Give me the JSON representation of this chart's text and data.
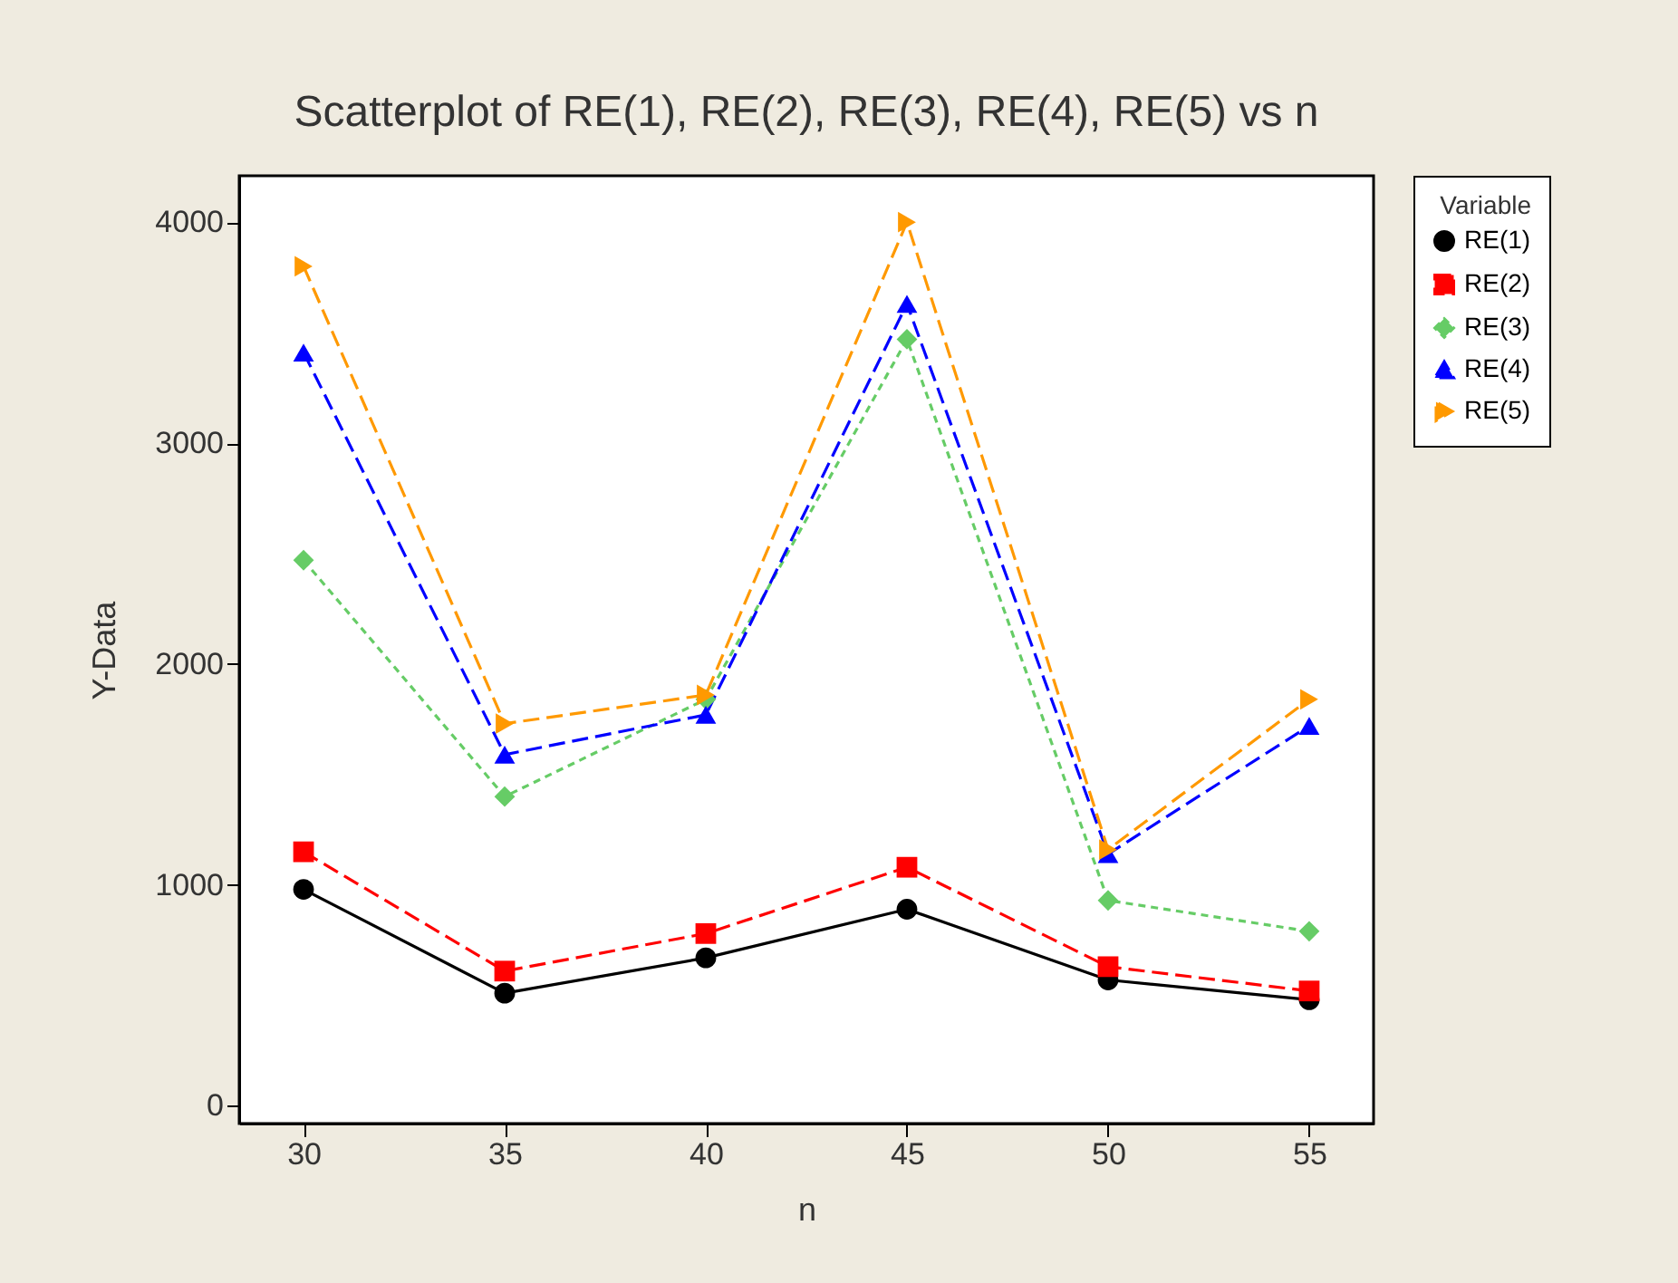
{
  "chart_data": {
    "type": "line",
    "title": "Scatterplot of RE(1), RE(2), RE(3), RE(4), RE(5) vs n",
    "xlabel": "n",
    "ylabel": "Y-Data",
    "legend_title": "Variable",
    "x": [
      30,
      35,
      40,
      45,
      50,
      55
    ],
    "series": [
      {
        "name": "RE(1)",
        "color": "#000000",
        "marker": "circle",
        "line_style": "solid",
        "values": [
          980,
          510,
          670,
          890,
          570,
          480
        ]
      },
      {
        "name": "RE(2)",
        "color": "#ff0000",
        "marker": "square",
        "line_style": "dashed",
        "values": [
          1150,
          610,
          780,
          1080,
          630,
          520
        ]
      },
      {
        "name": "RE(3)",
        "color": "#66cc66",
        "marker": "diamond",
        "line_style": "dotted",
        "values": [
          2470,
          1400,
          1840,
          3470,
          930,
          790
        ]
      },
      {
        "name": "RE(4)",
        "color": "#0000ff",
        "marker": "triangle",
        "line_style": "dashed",
        "values": [
          3410,
          1590,
          1770,
          3630,
          1140,
          1720
        ]
      },
      {
        "name": "RE(5)",
        "color": "#ff9900",
        "marker": "triangle-right",
        "line_style": "dashed",
        "values": [
          3800,
          1730,
          1860,
          4000,
          1160,
          1840
        ]
      }
    ],
    "xlim": [
      28.4,
      56.6
    ],
    "ylim": [
      -80,
      4210
    ],
    "xticks": [
      30,
      35,
      40,
      45,
      50,
      55
    ],
    "yticks": [
      0,
      1000,
      2000,
      3000,
      4000
    ],
    "grid": false,
    "legend": "top right"
  }
}
